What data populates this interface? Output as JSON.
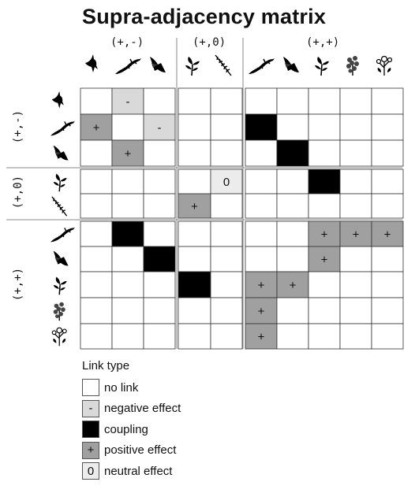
{
  "title": "Supra-adjacency matrix",
  "groups": [
    "(+,-)",
    "(+,0)",
    "(+,+)"
  ],
  "species": [
    {
      "name": "bird-icon",
      "group": 0
    },
    {
      "name": "lizard-icon",
      "group": 0
    },
    {
      "name": "fly-icon",
      "group": 0
    },
    {
      "name": "flower-icon",
      "group": 1
    },
    {
      "name": "grass-icon",
      "group": 1
    },
    {
      "name": "lizard-icon",
      "group": 2
    },
    {
      "name": "fly-icon",
      "group": 2
    },
    {
      "name": "flower-icon",
      "group": 2
    },
    {
      "name": "shrub-icon",
      "group": 2
    },
    {
      "name": "wildflower-icon",
      "group": 2
    }
  ],
  "column_species": [
    1,
    2,
    3,
    4,
    5,
    6,
    7,
    8,
    9,
    10
  ],
  "row_species": [
    1,
    2,
    3,
    4,
    5,
    6,
    7,
    8,
    9,
    10
  ],
  "matrix": [
    [
      0,
      1,
      0,
      0,
      0,
      0,
      0,
      0,
      0,
      0
    ],
    [
      4,
      0,
      1,
      0,
      0,
      2,
      0,
      0,
      0,
      0
    ],
    [
      0,
      4,
      0,
      0,
      0,
      0,
      2,
      0,
      0,
      0
    ],
    [
      0,
      0,
      0,
      0,
      3,
      0,
      0,
      2,
      0,
      0
    ],
    [
      0,
      0,
      0,
      4,
      0,
      0,
      0,
      0,
      0,
      0
    ],
    [
      0,
      2,
      0,
      0,
      0,
      0,
      0,
      4,
      4,
      4
    ],
    [
      0,
      0,
      2,
      0,
      0,
      0,
      0,
      4,
      0,
      0
    ],
    [
      0,
      0,
      0,
      2,
      0,
      4,
      4,
      0,
      0,
      0
    ],
    [
      0,
      0,
      0,
      0,
      0,
      4,
      0,
      0,
      0,
      0
    ],
    [
      0,
      0,
      0,
      0,
      0,
      4,
      0,
      0,
      0,
      0
    ]
  ],
  "legend": {
    "title": "Link type",
    "items": [
      {
        "type": 0,
        "symbol": "",
        "label": "no link"
      },
      {
        "type": 1,
        "symbol": "-",
        "label": "negative effect"
      },
      {
        "type": 2,
        "symbol": "",
        "label": "coupling"
      },
      {
        "type": 4,
        "symbol": "+",
        "label": "positive effect"
      },
      {
        "type": 3,
        "symbol": "0",
        "label": "neutral effect"
      }
    ]
  },
  "colors": {
    "no_link": "#ffffff",
    "negative": "#d9d9d9",
    "coupling": "#000000",
    "positive": "#a0a0a0",
    "neutral": "#ececec"
  }
}
